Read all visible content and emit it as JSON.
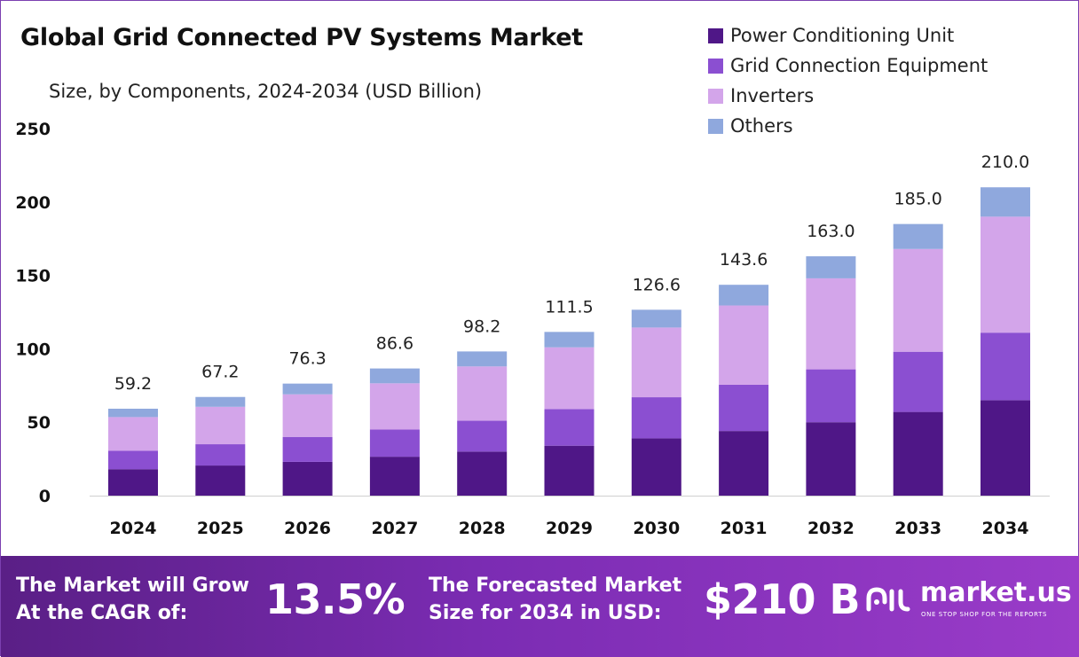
{
  "title": "Global Grid Connected PV Systems Market",
  "subtitle": "Size, by Components, 2024-2034 (USD Billion)",
  "colors": {
    "Power Conditioning Unit": "#4f1787",
    "Grid Connection Equipment": "#8b4fd1",
    "Inverters": "#d3a5ea",
    "Others": "#8fa8dd"
  },
  "chart_data": {
    "type": "bar",
    "stacked": true,
    "categories": [
      "2024",
      "2025",
      "2026",
      "2027",
      "2028",
      "2029",
      "2030",
      "2031",
      "2032",
      "2033",
      "2034"
    ],
    "series": [
      {
        "name": "Power Conditioning Unit",
        "values": [
          18,
          20.5,
          23,
          26.5,
          30,
          34,
          39,
          44,
          50,
          57,
          65
        ]
      },
      {
        "name": "Grid Connection Equipment",
        "values": [
          12.5,
          14.5,
          17,
          18.5,
          21,
          25,
          28,
          31.5,
          36,
          41,
          46
        ]
      },
      {
        "name": "Inverters",
        "values": [
          23,
          25.5,
          29,
          31.5,
          37,
          42,
          47.5,
          54,
          62,
          70,
          79
        ]
      },
      {
        "name": "Others",
        "values": [
          5.7,
          6.7,
          7.3,
          10.1,
          10.2,
          10.5,
          12.1,
          14.1,
          15,
          17,
          20
        ]
      }
    ],
    "totals": [
      "59.2",
      "67.2",
      "76.3",
      "86.6",
      "98.2",
      "111.5",
      "126.6",
      "143.6",
      "163.0",
      "185.0",
      "210.0"
    ],
    "yticks": [
      "0",
      "50",
      "100",
      "150",
      "200",
      "250"
    ],
    "ylim": [
      0,
      250
    ],
    "legend_position": "top-right",
    "grid": false
  },
  "footer": {
    "cagr_label_line1": "The Market will Grow",
    "cagr_label_line2": "At the CAGR of:",
    "cagr_value": "13.5%",
    "forecast_label_line1": "The Forecasted Market",
    "forecast_label_line2": "Size for 2034 in USD:",
    "forecast_value": "$210 B",
    "brand_name": "market.us",
    "brand_tagline": "ONE STOP SHOP FOR THE REPORTS"
  }
}
